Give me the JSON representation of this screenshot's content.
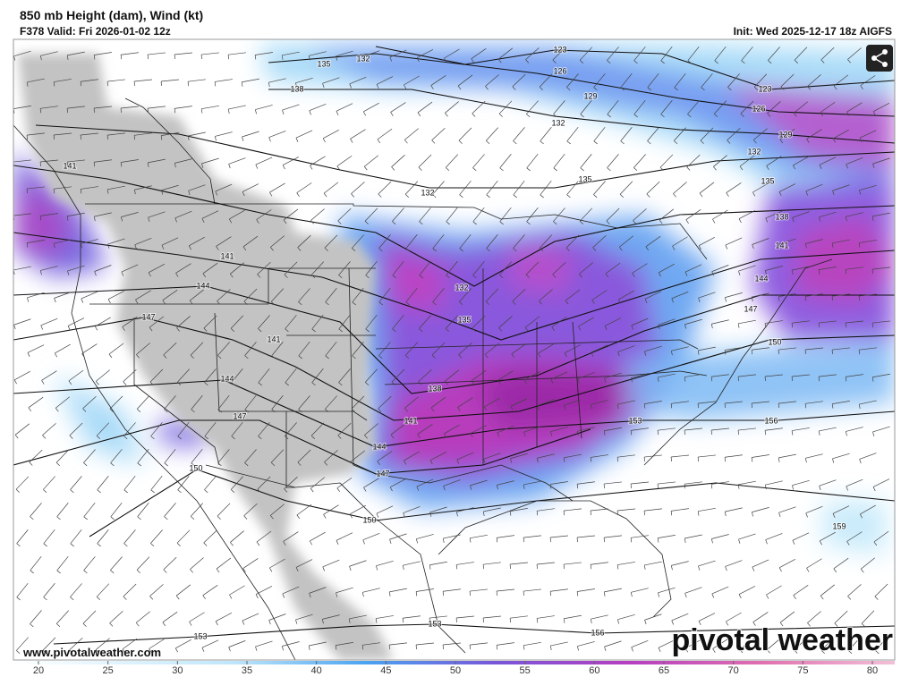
{
  "header": {
    "title": "850 mb Height (dam), Wind (kt)",
    "valid": "F378 Valid: Fri 2026-01-02 12z",
    "init": "Init: Wed 2025-12-17 18z AIGFS"
  },
  "contour_labels": [
    135,
    132,
    123,
    126,
    129,
    123,
    126,
    129,
    132,
    138,
    132,
    141,
    132,
    135,
    135,
    138,
    141,
    141,
    144,
    132,
    144,
    147,
    135,
    147,
    141,
    150,
    144,
    138,
    147,
    141,
    153,
    156,
    144,
    150,
    147,
    150,
    159,
    153,
    156,
    153
  ],
  "footer": {
    "url": "www.pivotalweather.com",
    "watermark": "pivotal weather"
  },
  "colorbar": {
    "ticks": [
      20,
      25,
      30,
      35,
      40,
      45,
      50,
      55,
      60,
      65,
      70,
      75,
      80
    ]
  }
}
